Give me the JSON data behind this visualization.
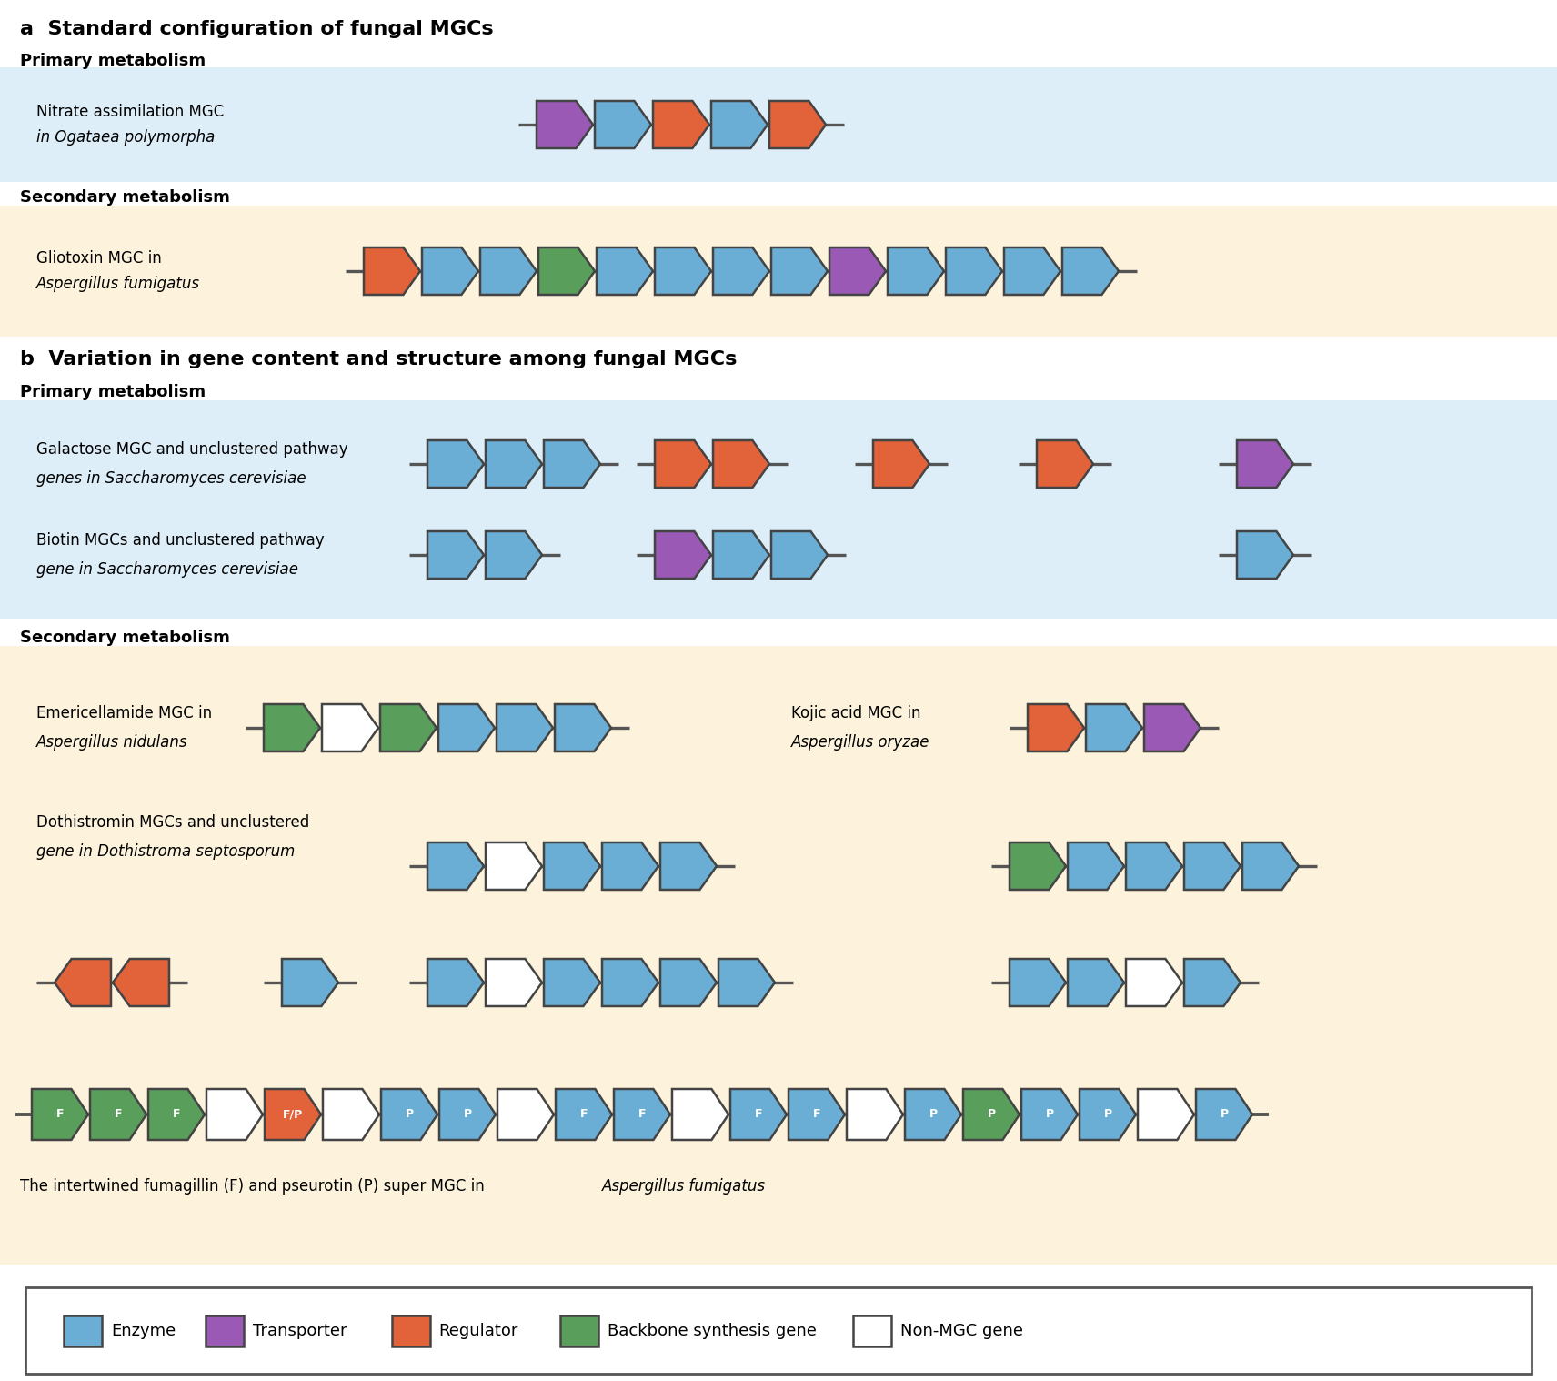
{
  "colors": {
    "enzyme": "#6aaed6",
    "transporter": "#9b59b6",
    "regulator": "#e2623a",
    "backbone": "#5a9e5c",
    "non_mgc": "#ffffff",
    "bg_primary": "#ddeef8",
    "bg_secondary": "#fdf3dc",
    "line": "#555555",
    "edge": "#444444"
  },
  "title_a": "a  Standard configuration of fungal MGCs",
  "title_b": "b  Variation in gene content and structure among fungal MGCs",
  "section_primary": "Primary metabolism",
  "section_secondary": "Secondary metabolism"
}
